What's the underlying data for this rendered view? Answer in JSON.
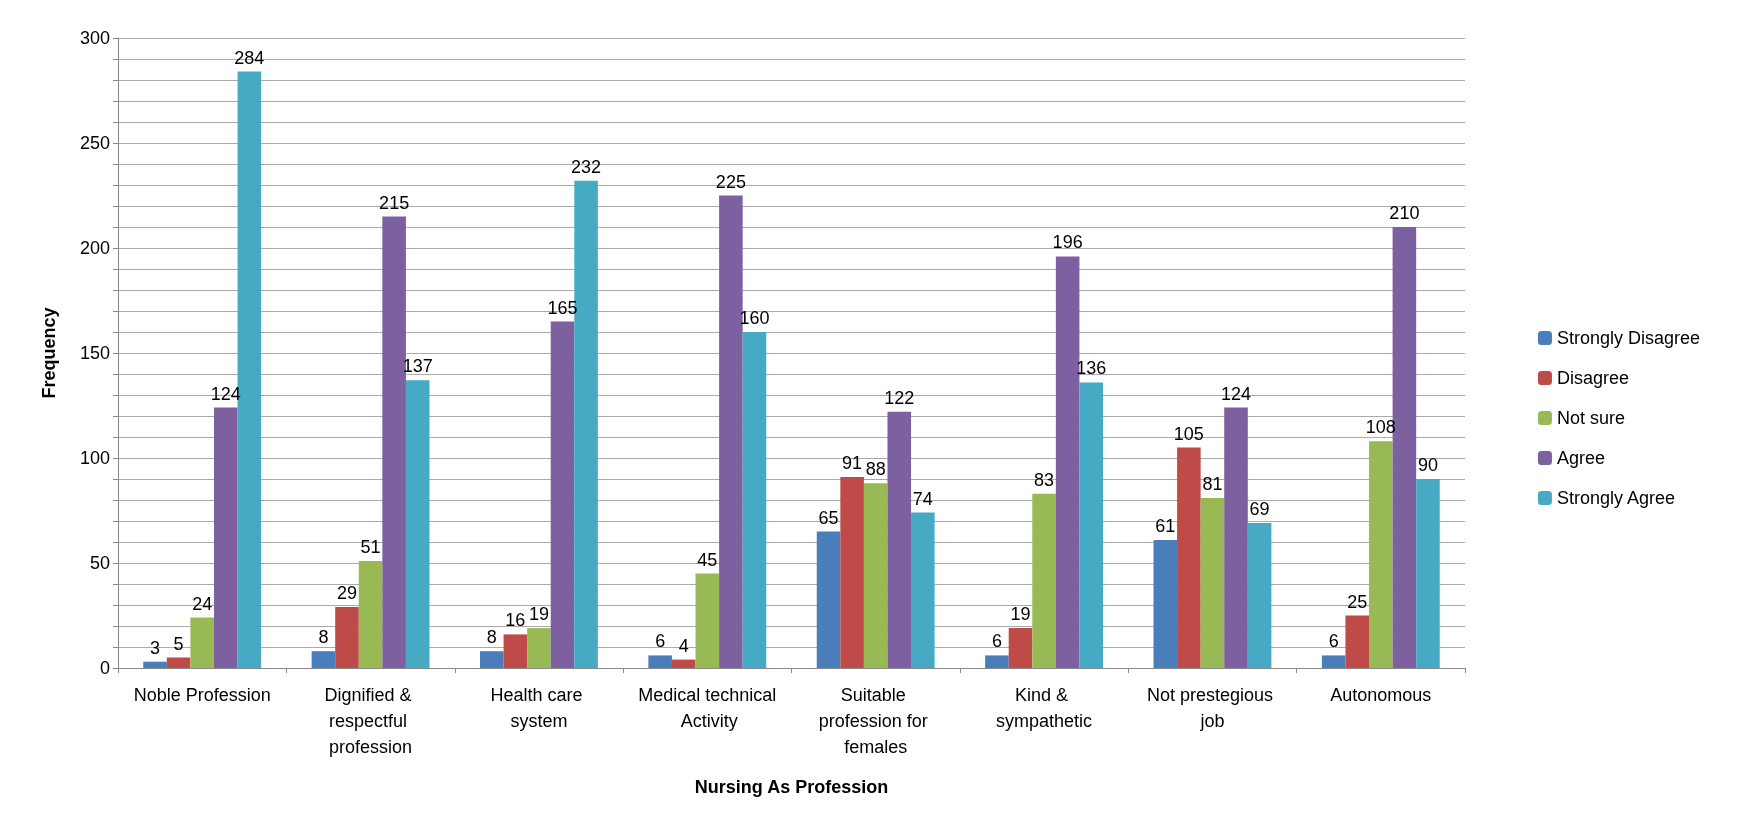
{
  "chart_data": {
    "type": "bar",
    "xlabel": "Nursing As Profession",
    "ylabel": "Frequency",
    "categories": [
      "Noble Profession",
      "Dignified & respectful profession",
      "Health care system",
      "Medical technical Activity",
      "Suitable profession for females",
      "Kind & sympathetic",
      "Not prestegious job",
      "Autonomous"
    ],
    "series": [
      {
        "name": "Strongly Disagree",
        "color": "#4a7ebb",
        "values": [
          3,
          8,
          8,
          6,
          65,
          6,
          61,
          6
        ]
      },
      {
        "name": "Disagree",
        "color": "#be4b48",
        "values": [
          5,
          29,
          16,
          4,
          91,
          19,
          105,
          25
        ]
      },
      {
        "name": "Not sure",
        "color": "#98b954",
        "values": [
          24,
          51,
          19,
          45,
          88,
          83,
          81,
          108
        ]
      },
      {
        "name": "Agree",
        "color": "#7d60a0",
        "values": [
          124,
          215,
          165,
          225,
          122,
          196,
          124,
          210
        ]
      },
      {
        "name": "Strongly Agree",
        "color": "#46aac5",
        "values": [
          284,
          137,
          232,
          160,
          74,
          136,
          69,
          90
        ]
      }
    ],
    "ylim": [
      0,
      300
    ],
    "yticks": [
      0,
      {
        "value": 10,
        "label": null
      },
      {
        "value": 20,
        "label": null
      },
      {
        "value": 30,
        "label": null
      },
      {
        "value": 40,
        "label": null
      },
      50,
      {
        "value": 60,
        "label": null
      },
      {
        "value": 70,
        "label": null
      },
      {
        "value": 80,
        "label": null
      },
      {
        "value": 90,
        "label": null
      },
      100,
      {
        "value": 110,
        "label": null
      },
      {
        "value": 120,
        "label": null
      },
      {
        "value": 130,
        "label": null
      },
      {
        "value": 140,
        "label": null
      },
      150,
      {
        "value": 160,
        "label": null
      },
      {
        "value": 170,
        "label": null
      },
      {
        "value": 180,
        "label": null
      },
      {
        "value": 190,
        "label": null
      },
      200,
      {
        "value": 210,
        "label": null
      },
      {
        "value": 220,
        "label": null
      },
      {
        "value": 230,
        "label": null
      },
      {
        "value": 240,
        "label": null
      },
      250,
      {
        "value": 260,
        "label": null
      },
      {
        "value": 270,
        "label": null
      },
      {
        "value": 280,
        "label": null
      },
      {
        "value": 290,
        "label": null
      },
      300
    ],
    "grid": "y",
    "legend": "right",
    "data_labels": true
  }
}
